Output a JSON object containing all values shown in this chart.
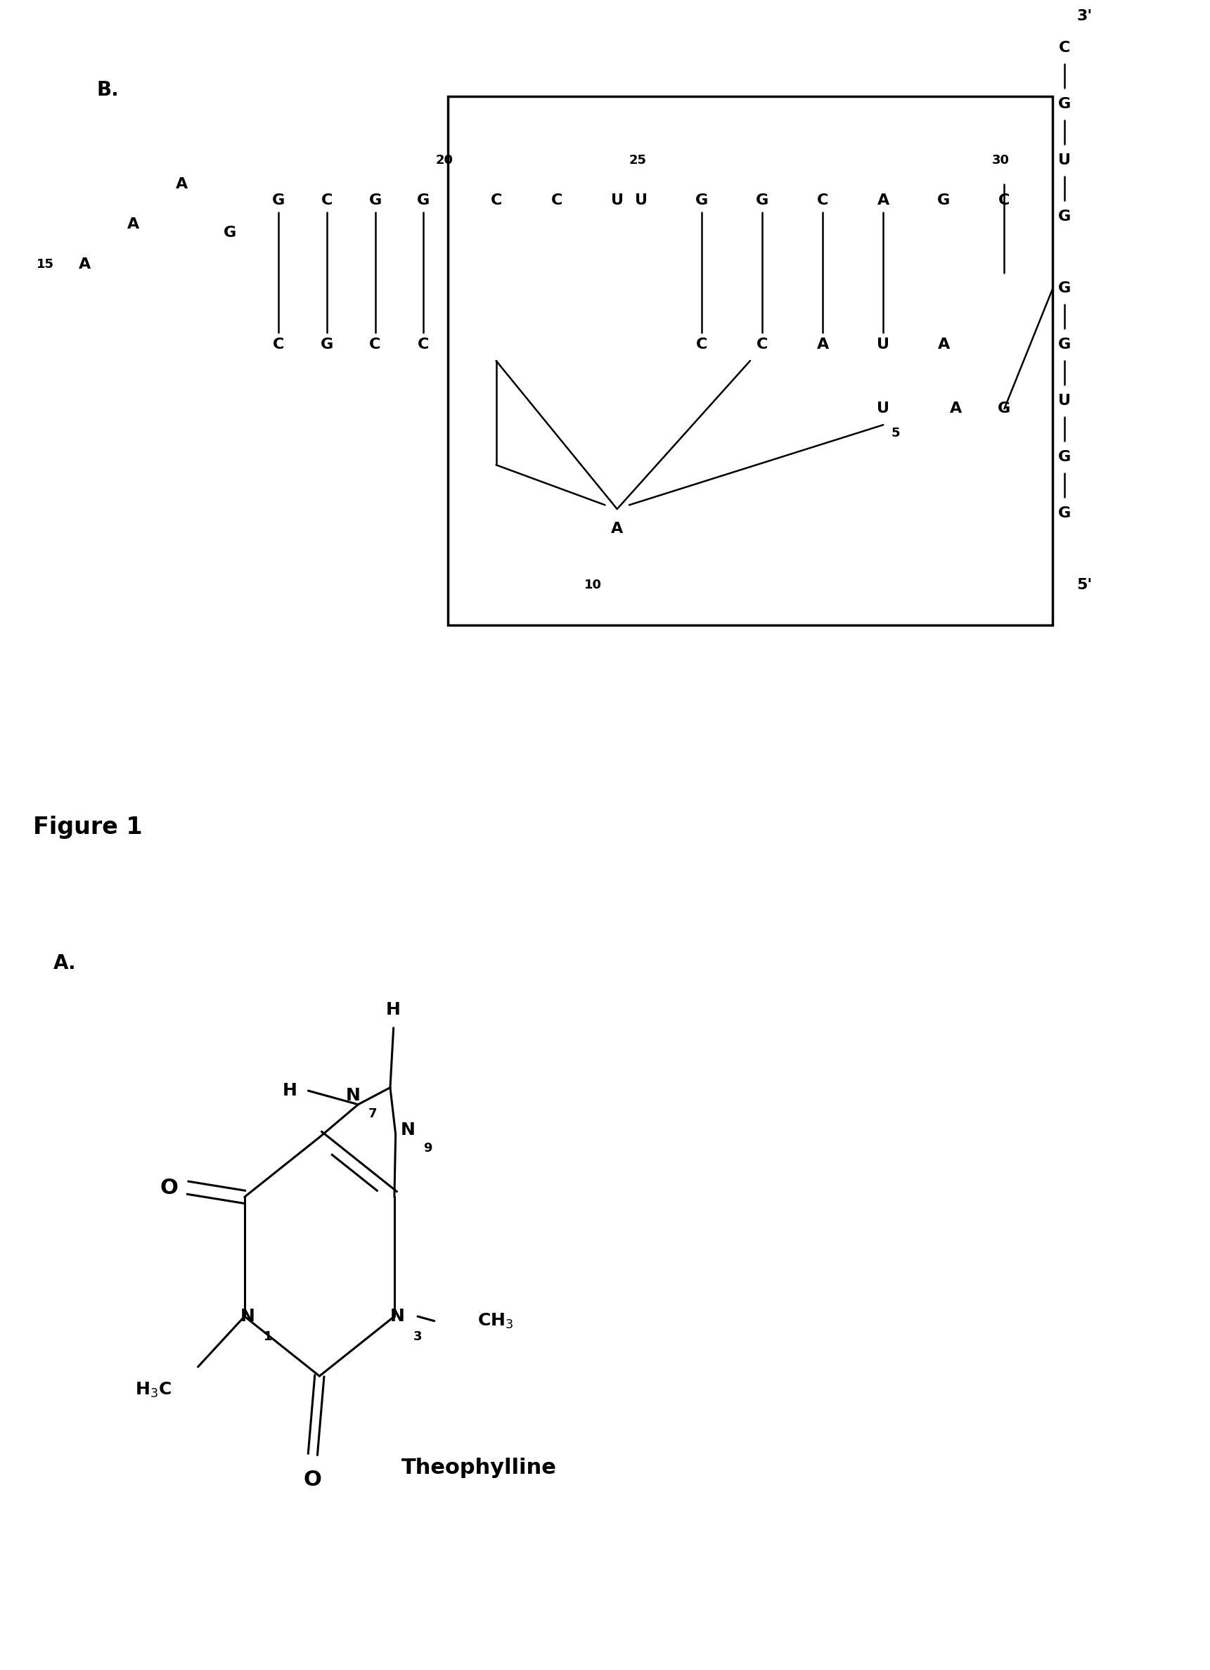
{
  "bg": "#ffffff",
  "fg": "#000000",
  "figure_label": "Figure 1",
  "panel_a_label": "A.",
  "panel_b_label": "B.",
  "theo_label": "Theophylline",
  "mol_fs": 18,
  "rna_fs": 16,
  "num_fs": 13,
  "lbl_fs": 20,
  "title_fs": 24,
  "lw": 2.2,
  "rna_lw": 1.8
}
